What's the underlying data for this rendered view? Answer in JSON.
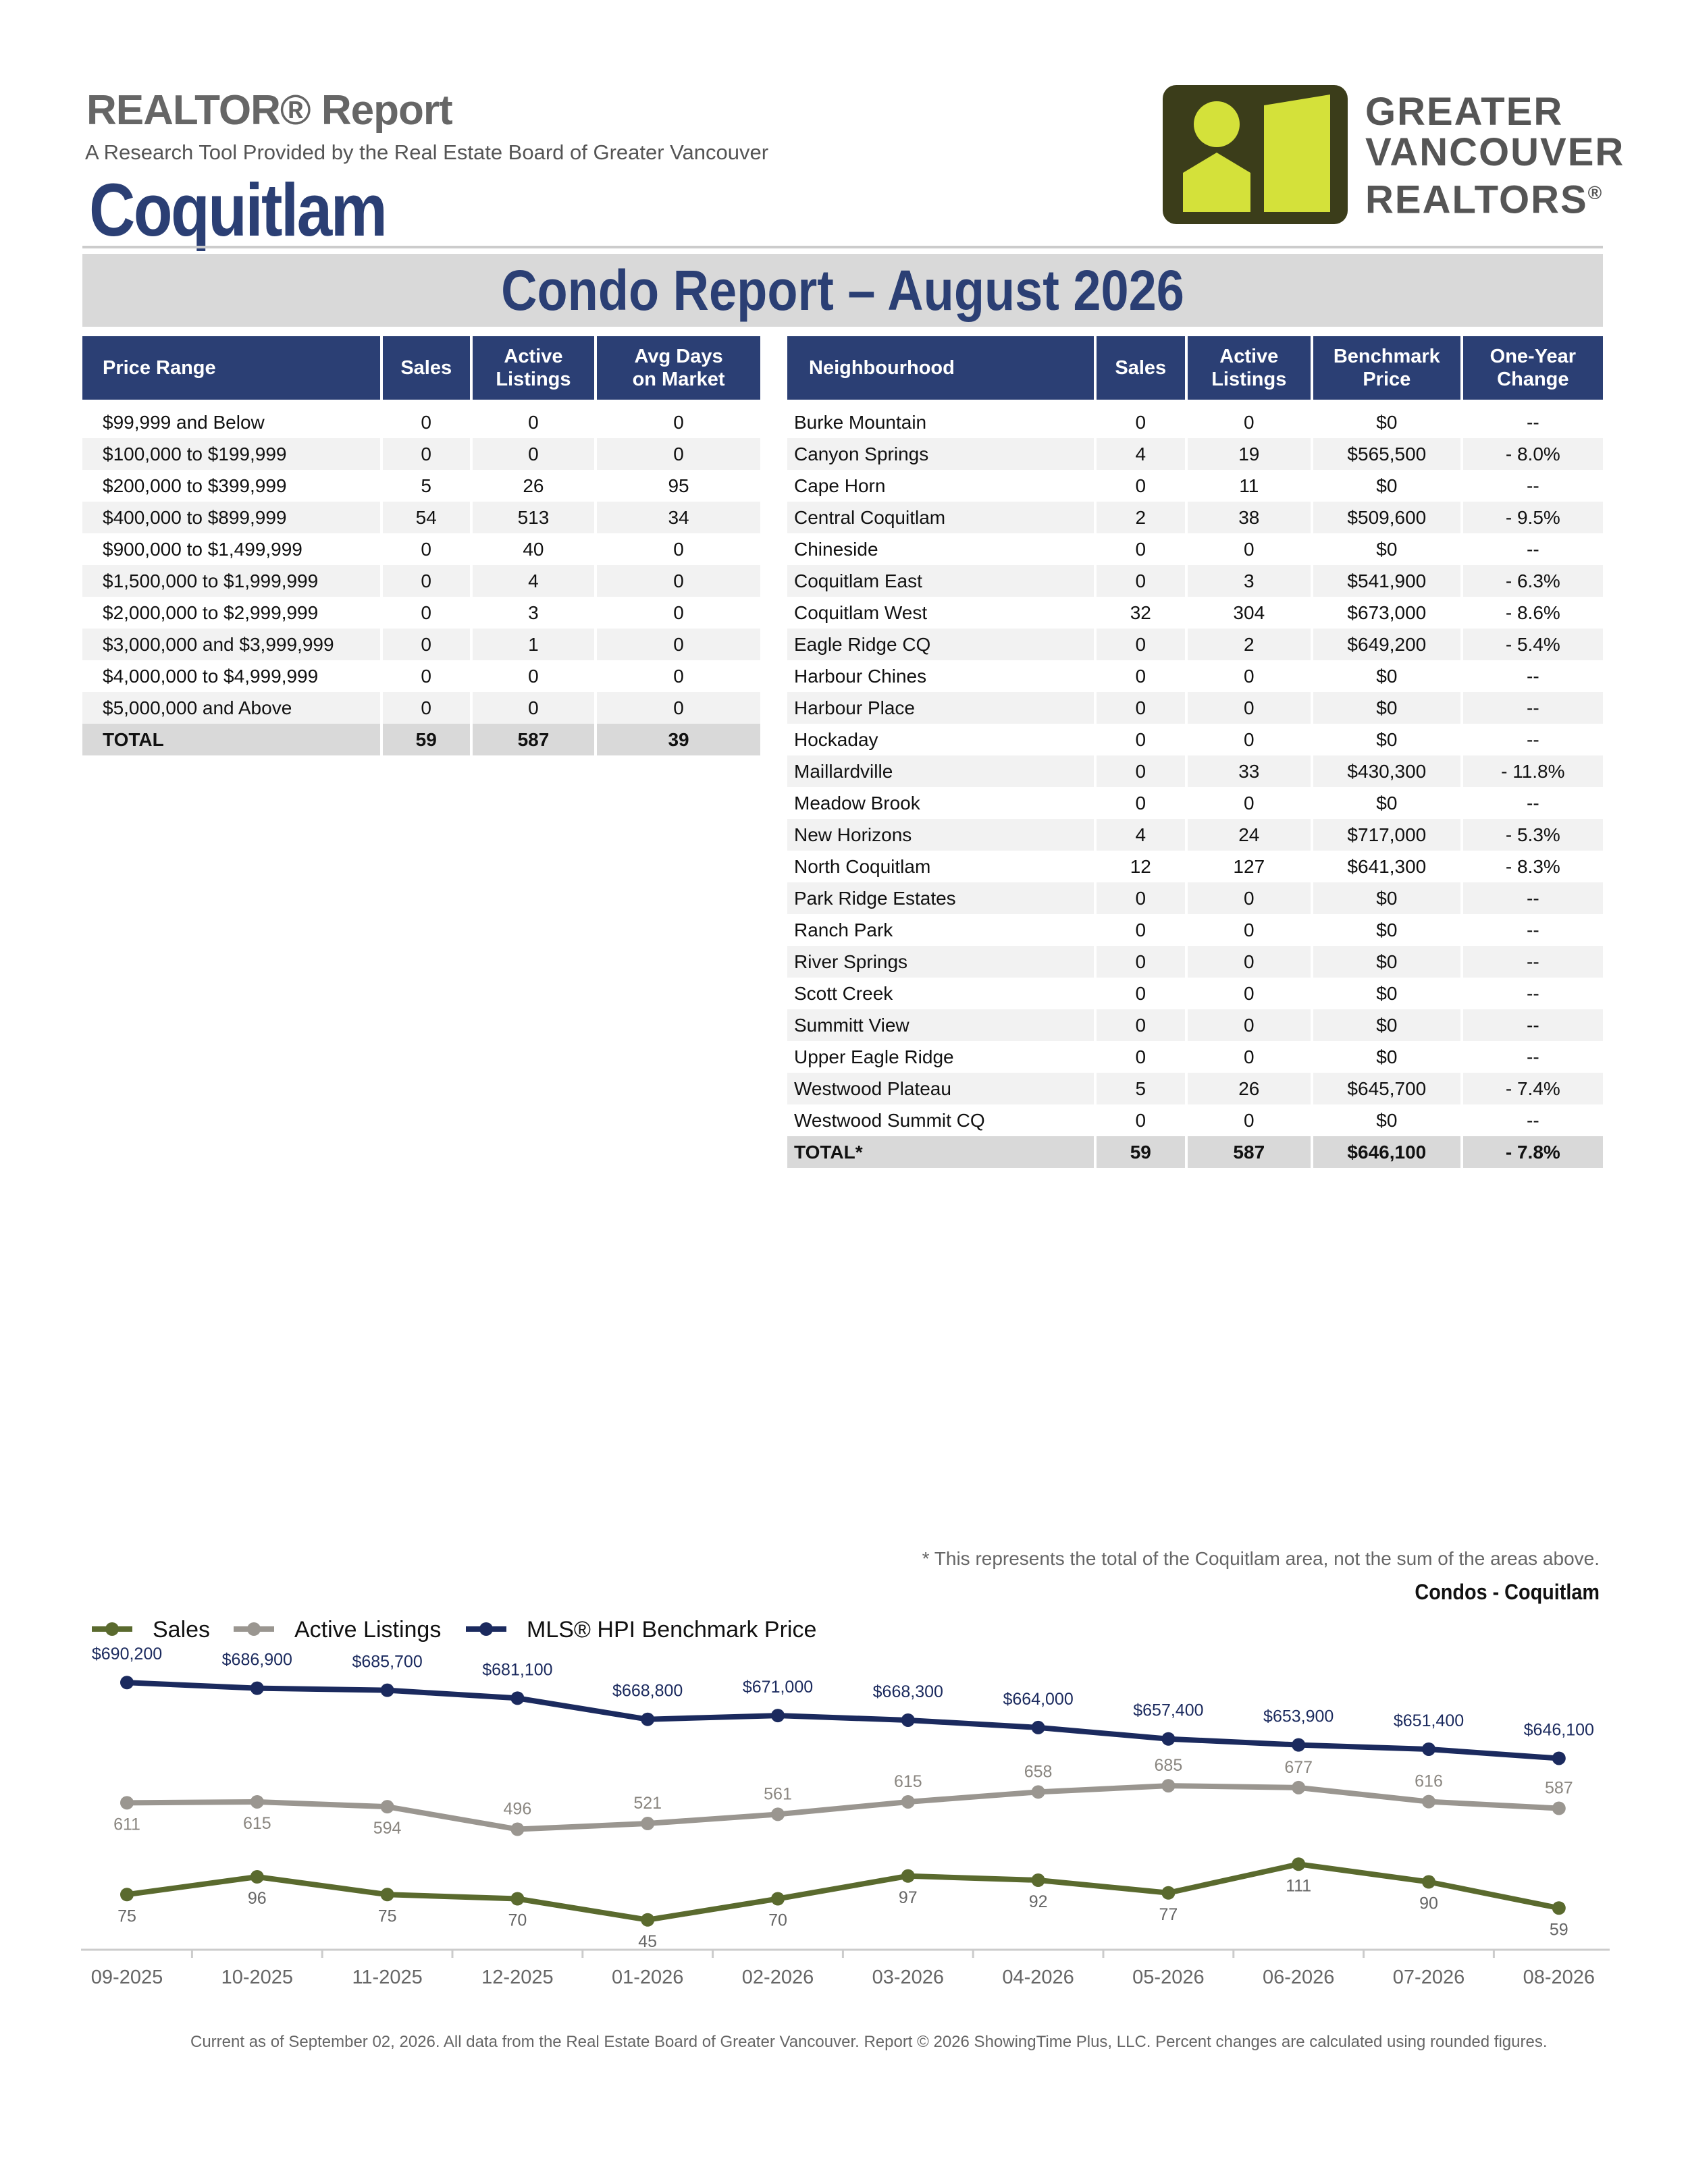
{
  "header": {
    "kicker": "REALTOR® Report",
    "subtitle": "A Research Tool Provided by the Real Estate Board of Greater Vancouver",
    "area": "Coquitlam",
    "banner": "Condo Report – August 2026"
  },
  "logo": {
    "line1": "GREATER",
    "line2": "VANCOUVER",
    "line3": "REALTORS",
    "reg": "®",
    "colors": {
      "frame": "#3b3d1a",
      "fill": "#d4e13a",
      "text": "#555555"
    }
  },
  "price_table": {
    "headers": [
      "Price Range",
      "Sales",
      "Active Listings",
      "Avg Days on Market"
    ],
    "rows": [
      [
        "$99,999 and Below",
        "0",
        "0",
        "0"
      ],
      [
        "$100,000 to $199,999",
        "0",
        "0",
        "0"
      ],
      [
        "$200,000 to $399,999",
        "5",
        "26",
        "95"
      ],
      [
        "$400,000 to $899,999",
        "54",
        "513",
        "34"
      ],
      [
        "$900,000 to $1,499,999",
        "0",
        "40",
        "0"
      ],
      [
        "$1,500,000 to $1,999,999",
        "0",
        "4",
        "0"
      ],
      [
        "$2,000,000 to $2,999,999",
        "0",
        "3",
        "0"
      ],
      [
        "$3,000,000 and $3,999,999",
        "0",
        "1",
        "0"
      ],
      [
        "$4,000,000 to $4,999,999",
        "0",
        "0",
        "0"
      ],
      [
        "$5,000,000 and Above",
        "0",
        "0",
        "0"
      ]
    ],
    "total": [
      "TOTAL",
      "59",
      "587",
      "39"
    ]
  },
  "neighbourhood_table": {
    "headers": [
      "Neighbourhood",
      "Sales",
      "Active Listings",
      "Benchmark Price",
      "One-Year Change"
    ],
    "rows": [
      [
        "Burke Mountain",
        "0",
        "0",
        "$0",
        "--"
      ],
      [
        "Canyon Springs",
        "4",
        "19",
        "$565,500",
        "- 8.0%"
      ],
      [
        "Cape Horn",
        "0",
        "11",
        "$0",
        "--"
      ],
      [
        "Central Coquitlam",
        "2",
        "38",
        "$509,600",
        "- 9.5%"
      ],
      [
        "Chineside",
        "0",
        "0",
        "$0",
        "--"
      ],
      [
        "Coquitlam East",
        "0",
        "3",
        "$541,900",
        "- 6.3%"
      ],
      [
        "Coquitlam West",
        "32",
        "304",
        "$673,000",
        "- 8.6%"
      ],
      [
        "Eagle Ridge CQ",
        "0",
        "2",
        "$649,200",
        "- 5.4%"
      ],
      [
        "Harbour Chines",
        "0",
        "0",
        "$0",
        "--"
      ],
      [
        "Harbour Place",
        "0",
        "0",
        "$0",
        "--"
      ],
      [
        "Hockaday",
        "0",
        "0",
        "$0",
        "--"
      ],
      [
        "Maillardville",
        "0",
        "33",
        "$430,300",
        "- 11.8%"
      ],
      [
        "Meadow Brook",
        "0",
        "0",
        "$0",
        "--"
      ],
      [
        "New Horizons",
        "4",
        "24",
        "$717,000",
        "- 5.3%"
      ],
      [
        "North Coquitlam",
        "12",
        "127",
        "$641,300",
        "- 8.3%"
      ],
      [
        "Park Ridge Estates",
        "0",
        "0",
        "$0",
        "--"
      ],
      [
        "Ranch Park",
        "0",
        "0",
        "$0",
        "--"
      ],
      [
        "River Springs",
        "0",
        "0",
        "$0",
        "--"
      ],
      [
        "Scott Creek",
        "0",
        "0",
        "$0",
        "--"
      ],
      [
        "Summitt View",
        "0",
        "0",
        "$0",
        "--"
      ],
      [
        "Upper Eagle Ridge",
        "0",
        "0",
        "$0",
        "--"
      ],
      [
        "Westwood Plateau",
        "5",
        "26",
        "$645,700",
        "- 7.4%"
      ],
      [
        "Westwood Summit CQ",
        "0",
        "0",
        "$0",
        "--"
      ]
    ],
    "total": [
      "TOTAL*",
      "59",
      "587",
      "$646,100",
      "- 7.8%"
    ]
  },
  "footnote": "* This represents the total of the Coquitlam area, not the sum of the areas above.",
  "chart_title": "Condos - Coquitlam",
  "footer": "Current as of September 02, 2026. All data from the Real Estate Board of Greater Vancouver.  Report © 2026 ShowingTime Plus, LLC. Percent changes are calculated using rounded figures.",
  "chart_data": {
    "type": "line",
    "categories": [
      "09-2025",
      "10-2025",
      "11-2025",
      "12-2025",
      "01-2026",
      "02-2026",
      "03-2026",
      "04-2026",
      "05-2026",
      "06-2026",
      "07-2026",
      "08-2026"
    ],
    "legend_position": "top-left",
    "grid": false,
    "series": [
      {
        "name": "Sales",
        "color": "#5a6a2e",
        "values": [
          75,
          96,
          75,
          70,
          45,
          70,
          97,
          92,
          77,
          111,
          90,
          59
        ],
        "labels": [
          "75",
          "96",
          "75",
          "70",
          "45",
          "70",
          "97",
          "92",
          "77",
          "111",
          "90",
          "59"
        ]
      },
      {
        "name": "Active Listings",
        "color": "#9a9690",
        "values": [
          611,
          615,
          594,
          496,
          521,
          561,
          615,
          658,
          685,
          677,
          616,
          587
        ],
        "labels": [
          "611",
          "615",
          "594",
          "496",
          "521",
          "561",
          "615",
          "658",
          "685",
          "677",
          "616",
          "587"
        ]
      },
      {
        "name": "MLS® HPI Benchmark Price",
        "color": "#1b2a5e",
        "values": [
          690200,
          686900,
          685700,
          681100,
          668800,
          671000,
          668300,
          664000,
          657400,
          653900,
          651400,
          646100
        ],
        "labels": [
          "$690,200",
          "$686,900",
          "$685,700",
          "$681,100",
          "$668,800",
          "$671,000",
          "$668,300",
          "$664,000",
          "$657,400",
          "$653,900",
          "$651,400",
          "$646,100"
        ]
      }
    ]
  }
}
